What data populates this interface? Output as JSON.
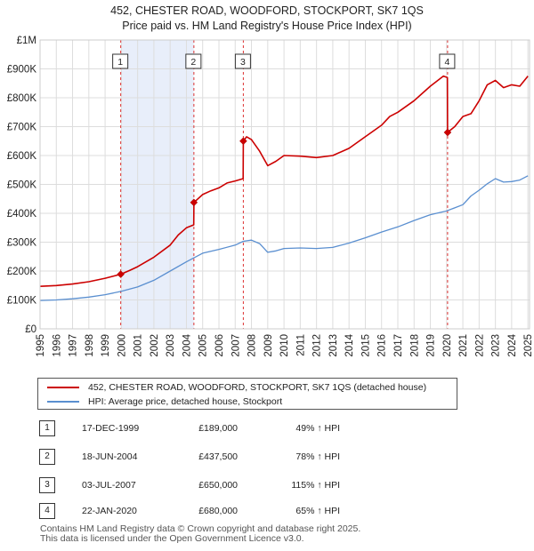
{
  "title": {
    "line1": "452, CHESTER ROAD, WOODFORD, STOCKPORT, SK7 1QS",
    "line2": "Price paid vs. HM Land Registry's House Price Index (HPI)"
  },
  "chart_data": {
    "type": "line",
    "title": "452, CHESTER ROAD, WOODFORD, STOCKPORT, SK7 1QS — Price paid vs. HM Land Registry's House Price Index (HPI)",
    "xlim": [
      1995,
      2025.1
    ],
    "ylim": [
      0,
      1000000
    ],
    "y_ticks": [
      0,
      100000,
      200000,
      300000,
      400000,
      500000,
      600000,
      700000,
      800000,
      900000,
      1000000
    ],
    "y_tick_labels": [
      "£0",
      "£100K",
      "£200K",
      "£300K",
      "£400K",
      "£500K",
      "£600K",
      "£700K",
      "£800K",
      "£900K",
      "£1M"
    ],
    "x_ticks": [
      1995,
      1996,
      1997,
      1998,
      1999,
      2000,
      2001,
      2002,
      2003,
      2004,
      2005,
      2006,
      2007,
      2008,
      2009,
      2010,
      2011,
      2012,
      2013,
      2014,
      2015,
      2016,
      2017,
      2018,
      2019,
      2020,
      2021,
      2022,
      2023,
      2024,
      2025
    ],
    "x_tick_labels": [
      "1995",
      "1996",
      "1997",
      "1998",
      "1999",
      "2000",
      "2001",
      "2002",
      "2003",
      "2004",
      "2005",
      "2006",
      "2007",
      "2008",
      "2009",
      "2010",
      "2011",
      "2012",
      "2013",
      "2014",
      "2015",
      "2016",
      "2017",
      "2018",
      "2019",
      "2020",
      "2021",
      "2022",
      "2023",
      "2024",
      "2025"
    ],
    "grid": true,
    "series": [
      {
        "name": "452, CHESTER ROAD, WOODFORD, STOCKPORT, SK7 1QS (detached house)",
        "color": "#cc0000",
        "x": [
          1995,
          1996,
          1997,
          1998,
          1999,
          1999.96,
          2000.5,
          2001,
          2002,
          2003,
          2003.5,
          2004,
          2004.45,
          2004.46,
          2005,
          2005.5,
          2006,
          2006.5,
          2007,
          2007.49,
          2007.5,
          2007.7,
          2008,
          2008.5,
          2009,
          2009.5,
          2010,
          2011,
          2012,
          2013,
          2014,
          2014.5,
          2015,
          2016,
          2016.5,
          2017,
          2018,
          2018.5,
          2019,
          2019.8,
          2020.05,
          2020.06,
          2020.5,
          2021,
          2021.5,
          2022,
          2022.5,
          2023,
          2023.5,
          2024,
          2024.5,
          2025
        ],
        "values": [
          147000,
          150000,
          155000,
          163000,
          175000,
          189000,
          202000,
          215000,
          248000,
          290000,
          325000,
          350000,
          360000,
          437500,
          465000,
          478000,
          488000,
          505000,
          512000,
          520000,
          650000,
          665000,
          655000,
          615000,
          565000,
          580000,
          600000,
          598000,
          593000,
          600000,
          625000,
          645000,
          665000,
          705000,
          735000,
          750000,
          790000,
          815000,
          840000,
          875000,
          870000,
          680000,
          700000,
          735000,
          745000,
          790000,
          845000,
          860000,
          835000,
          845000,
          840000,
          875000
        ]
      },
      {
        "name": "HPI: Average price, detached house, Stockport",
        "color": "#5a8fd0",
        "x": [
          1995,
          1996,
          1997,
          1998,
          1999,
          2000,
          2001,
          2002,
          2003,
          2004,
          2005,
          2006,
          2007,
          2007.5,
          2008,
          2008.5,
          2009,
          2009.5,
          2010,
          2011,
          2012,
          2013,
          2014,
          2015,
          2016,
          2017,
          2018,
          2019,
          2020,
          2021,
          2021.5,
          2022,
          2022.5,
          2023,
          2023.5,
          2024,
          2024.5,
          2025
        ],
        "values": [
          98000,
          100000,
          104000,
          110000,
          118000,
          130000,
          145000,
          168000,
          200000,
          232000,
          262000,
          275000,
          290000,
          303000,
          307000,
          295000,
          265000,
          270000,
          278000,
          280000,
          278000,
          282000,
          297000,
          315000,
          335000,
          353000,
          375000,
          395000,
          408000,
          430000,
          460000,
          480000,
          502000,
          520000,
          508000,
          510000,
          515000,
          530000
        ]
      }
    ],
    "sale_markers": [
      {
        "label": "1",
        "x": 1999.96,
        "value": 189000
      },
      {
        "label": "2",
        "x": 2004.46,
        "value": 437500
      },
      {
        "label": "3",
        "x": 2007.5,
        "value": 650000
      },
      {
        "label": "4",
        "x": 2020.06,
        "value": 680000
      }
    ],
    "shaded_ranges": [
      [
        1999.96,
        2004.46
      ]
    ]
  },
  "legend": {
    "items": [
      {
        "label": "452, CHESTER ROAD, WOODFORD, STOCKPORT, SK7 1QS (detached house)",
        "color": "#cc0000"
      },
      {
        "label": "HPI: Average price, detached house, Stockport",
        "color": "#5a8fd0"
      }
    ]
  },
  "transactions": [
    {
      "num": "1",
      "date": "17-DEC-1999",
      "price": "£189,000",
      "hpi": "49% ↑ HPI"
    },
    {
      "num": "2",
      "date": "18-JUN-2004",
      "price": "£437,500",
      "hpi": "78% ↑ HPI"
    },
    {
      "num": "3",
      "date": "03-JUL-2007",
      "price": "£650,000",
      "hpi": "115% ↑ HPI"
    },
    {
      "num": "4",
      "date": "22-JAN-2020",
      "price": "£680,000",
      "hpi": "65% ↑ HPI"
    }
  ],
  "footer": {
    "line1": "Contains HM Land Registry data © Crown copyright and database right 2025.",
    "line2": "This data is licensed under the Open Government Licence v3.0."
  }
}
